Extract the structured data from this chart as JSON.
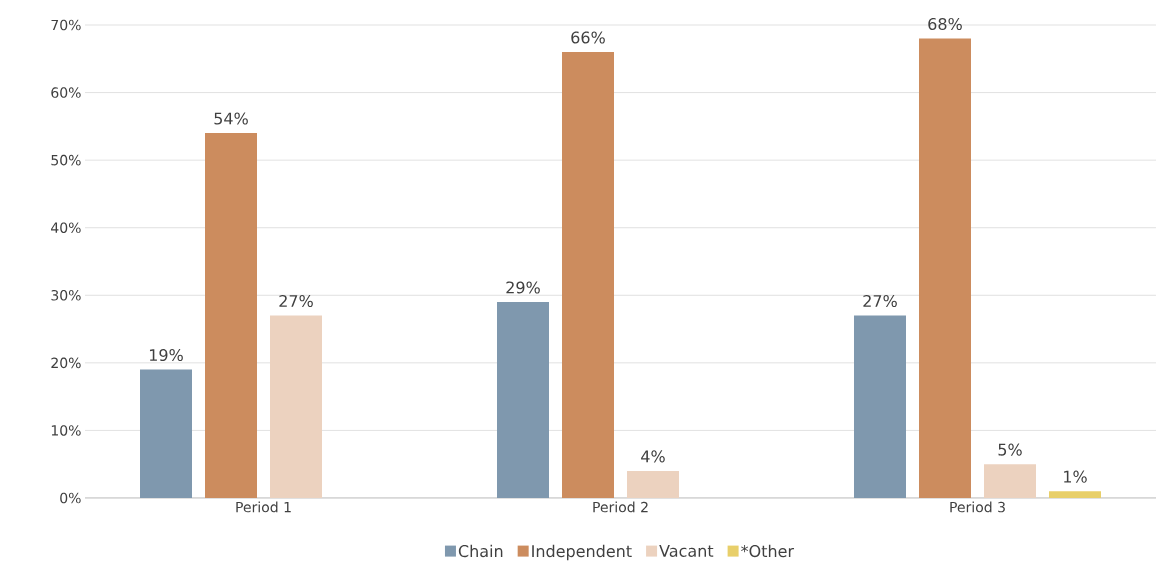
{
  "chart_data": {
    "type": "bar",
    "categories": [
      "Period 1",
      "Period 2",
      "Period 3"
    ],
    "series": [
      {
        "name": "Chain",
        "color": "#7f98ae",
        "values": [
          19,
          29,
          27
        ],
        "value_labels": [
          "19%",
          "29%",
          "27%"
        ]
      },
      {
        "name": "Independent",
        "color": "#cc8c5e",
        "values": [
          54,
          66,
          68
        ],
        "value_labels": [
          "54%",
          "66%",
          "68%"
        ]
      },
      {
        "name": "Vacant",
        "color": "#ecd2bf",
        "values": [
          27,
          4,
          5
        ],
        "value_labels": [
          "27%",
          "4%",
          "5%"
        ]
      },
      {
        "name": "*Other",
        "color": "#e8cf6a",
        "values": [
          null,
          null,
          1
        ],
        "value_labels": [
          null,
          null,
          "1%"
        ]
      }
    ],
    "ylim": [
      0,
      70
    ],
    "yticks": [
      {
        "value": 0,
        "label": "0%"
      },
      {
        "value": 10,
        "label": "10%"
      },
      {
        "value": 20,
        "label": "20%"
      },
      {
        "value": 30,
        "label": "30%"
      },
      {
        "value": 40,
        "label": "40%"
      },
      {
        "value": 50,
        "label": "50%"
      },
      {
        "value": 60,
        "label": "60%"
      },
      {
        "value": 70,
        "label": "70%"
      }
    ],
    "grid": "y",
    "legend": "bottom"
  }
}
